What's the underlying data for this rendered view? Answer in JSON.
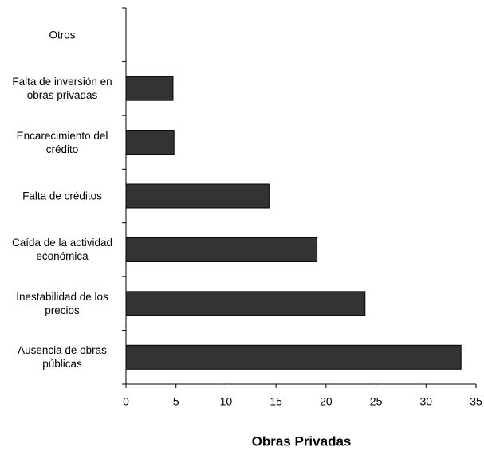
{
  "chart_data": {
    "type": "bar",
    "orientation": "horizontal",
    "x_label": "Obras Privadas",
    "categories": [
      "Otros",
      "Falta de inversión en obras privadas",
      "Encarecimiento del crédito",
      "Falta de créditos",
      "Caída de la actividad económica",
      "Inestabilidad de los precios",
      "Ausencia de obras públicas"
    ],
    "values": [
      0,
      4.7,
      4.8,
      14.3,
      19.1,
      23.9,
      33.5
    ],
    "color": "#333333",
    "xlim": [
      0,
      35
    ],
    "xticks": [
      0,
      5,
      10,
      15,
      20,
      25,
      30,
      35
    ],
    "grid": false
  }
}
